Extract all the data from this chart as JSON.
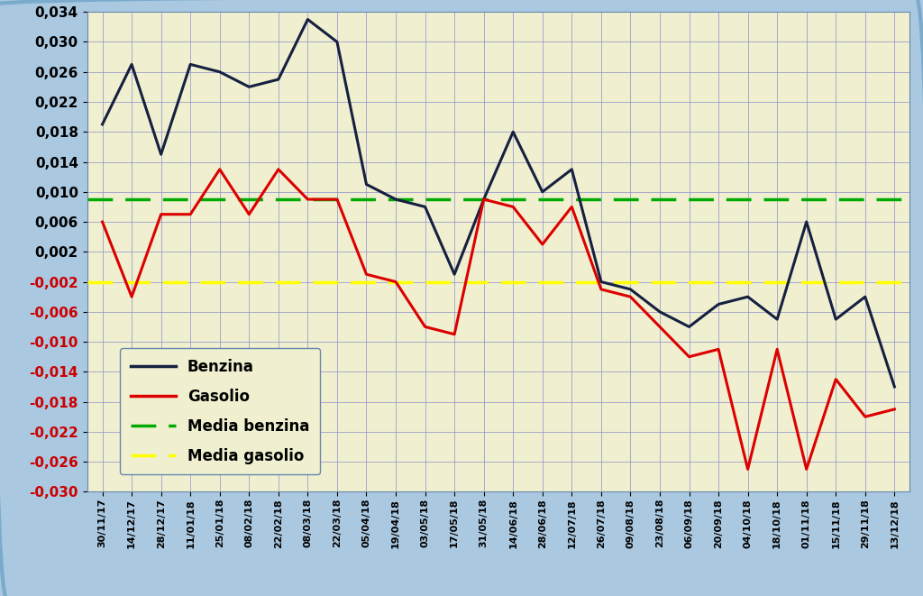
{
  "x_labels": [
    "30/11/17",
    "14/12/17",
    "28/12/17",
    "11/01/18",
    "25/01/18",
    "08/02/18",
    "22/02/18",
    "08/03/18",
    "22/03/18",
    "05/04/18",
    "19/04/18",
    "03/05/18",
    "17/05/18",
    "31/05/18",
    "14/06/18",
    "28/06/18",
    "12/07/18",
    "26/07/18",
    "09/08/18",
    "23/08/18",
    "06/09/18",
    "20/09/18",
    "04/10/18",
    "18/10/18",
    "01/11/18",
    "15/11/18",
    "29/11/18",
    "13/12/18"
  ],
  "benzina": [
    0.019,
    0.027,
    0.015,
    0.027,
    0.026,
    0.024,
    0.025,
    0.033,
    0.03,
    0.011,
    0.009,
    0.008,
    -0.001,
    0.009,
    0.018,
    0.01,
    0.013,
    -0.002,
    -0.003,
    -0.006,
    -0.008,
    -0.005,
    -0.004,
    -0.007,
    0.006,
    -0.007,
    -0.004,
    -0.016
  ],
  "gasolio": [
    0.006,
    -0.004,
    0.007,
    0.007,
    0.013,
    0.007,
    0.013,
    0.009,
    0.009,
    -0.001,
    -0.002,
    -0.008,
    -0.009,
    0.009,
    0.008,
    0.003,
    0.008,
    -0.003,
    -0.004,
    -0.008,
    -0.012,
    -0.011,
    -0.027,
    -0.011,
    -0.027,
    -0.015,
    -0.02,
    -0.019
  ],
  "media_benzina": 0.009,
  "media_gasolio": -0.002,
  "benzina_color": "#162040",
  "gasolio_color": "#dd0000",
  "media_benzina_color": "#00aa00",
  "media_gasolio_color": "#ffff00",
  "background_outer": "#aac8e0",
  "background_inner": "#f0f0d0",
  "grid_color_major": "#8888cc",
  "grid_color_minor": "#aaaadd",
  "ylim": [
    -0.03,
    0.034
  ],
  "yticks": [
    -0.03,
    -0.026,
    -0.022,
    -0.018,
    -0.014,
    -0.01,
    -0.006,
    -0.002,
    0.002,
    0.006,
    0.01,
    0.014,
    0.018,
    0.022,
    0.026,
    0.03,
    0.034
  ],
  "positive_ytick_color": "#000000",
  "negative_ytick_color": "#cc0000",
  "legend_labels": [
    "Benzina",
    "Gasolio",
    "Media benzina",
    "Media gasolio"
  ]
}
